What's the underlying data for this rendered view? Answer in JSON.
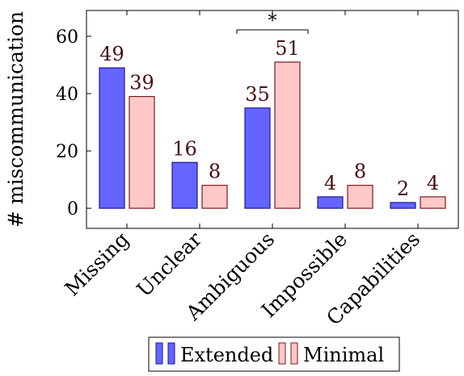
{
  "chart_data": {
    "type": "bar",
    "categories": [
      "Missing",
      "Unclear",
      "Ambiguous",
      "Impossible",
      "Capabilities"
    ],
    "series": [
      {
        "name": "Extended",
        "values": [
          49,
          16,
          35,
          4,
          2
        ],
        "fill": "#6464ff",
        "stroke": "#1a1a99"
      },
      {
        "name": "Minimal",
        "values": [
          39,
          8,
          51,
          8,
          4
        ],
        "fill": "#ffc8c8",
        "stroke": "#7a1a1a"
      }
    ],
    "ylabel": "# miscommunication",
    "xlabel": "",
    "ylim": [
      -7,
      69
    ],
    "yticks": [
      "0",
      "20",
      "40",
      "60"
    ],
    "grid": false,
    "legend": "bottom",
    "significance": {
      "between_category": "Ambiguous",
      "label": "*"
    },
    "label_color": "#4a0e0e"
  }
}
